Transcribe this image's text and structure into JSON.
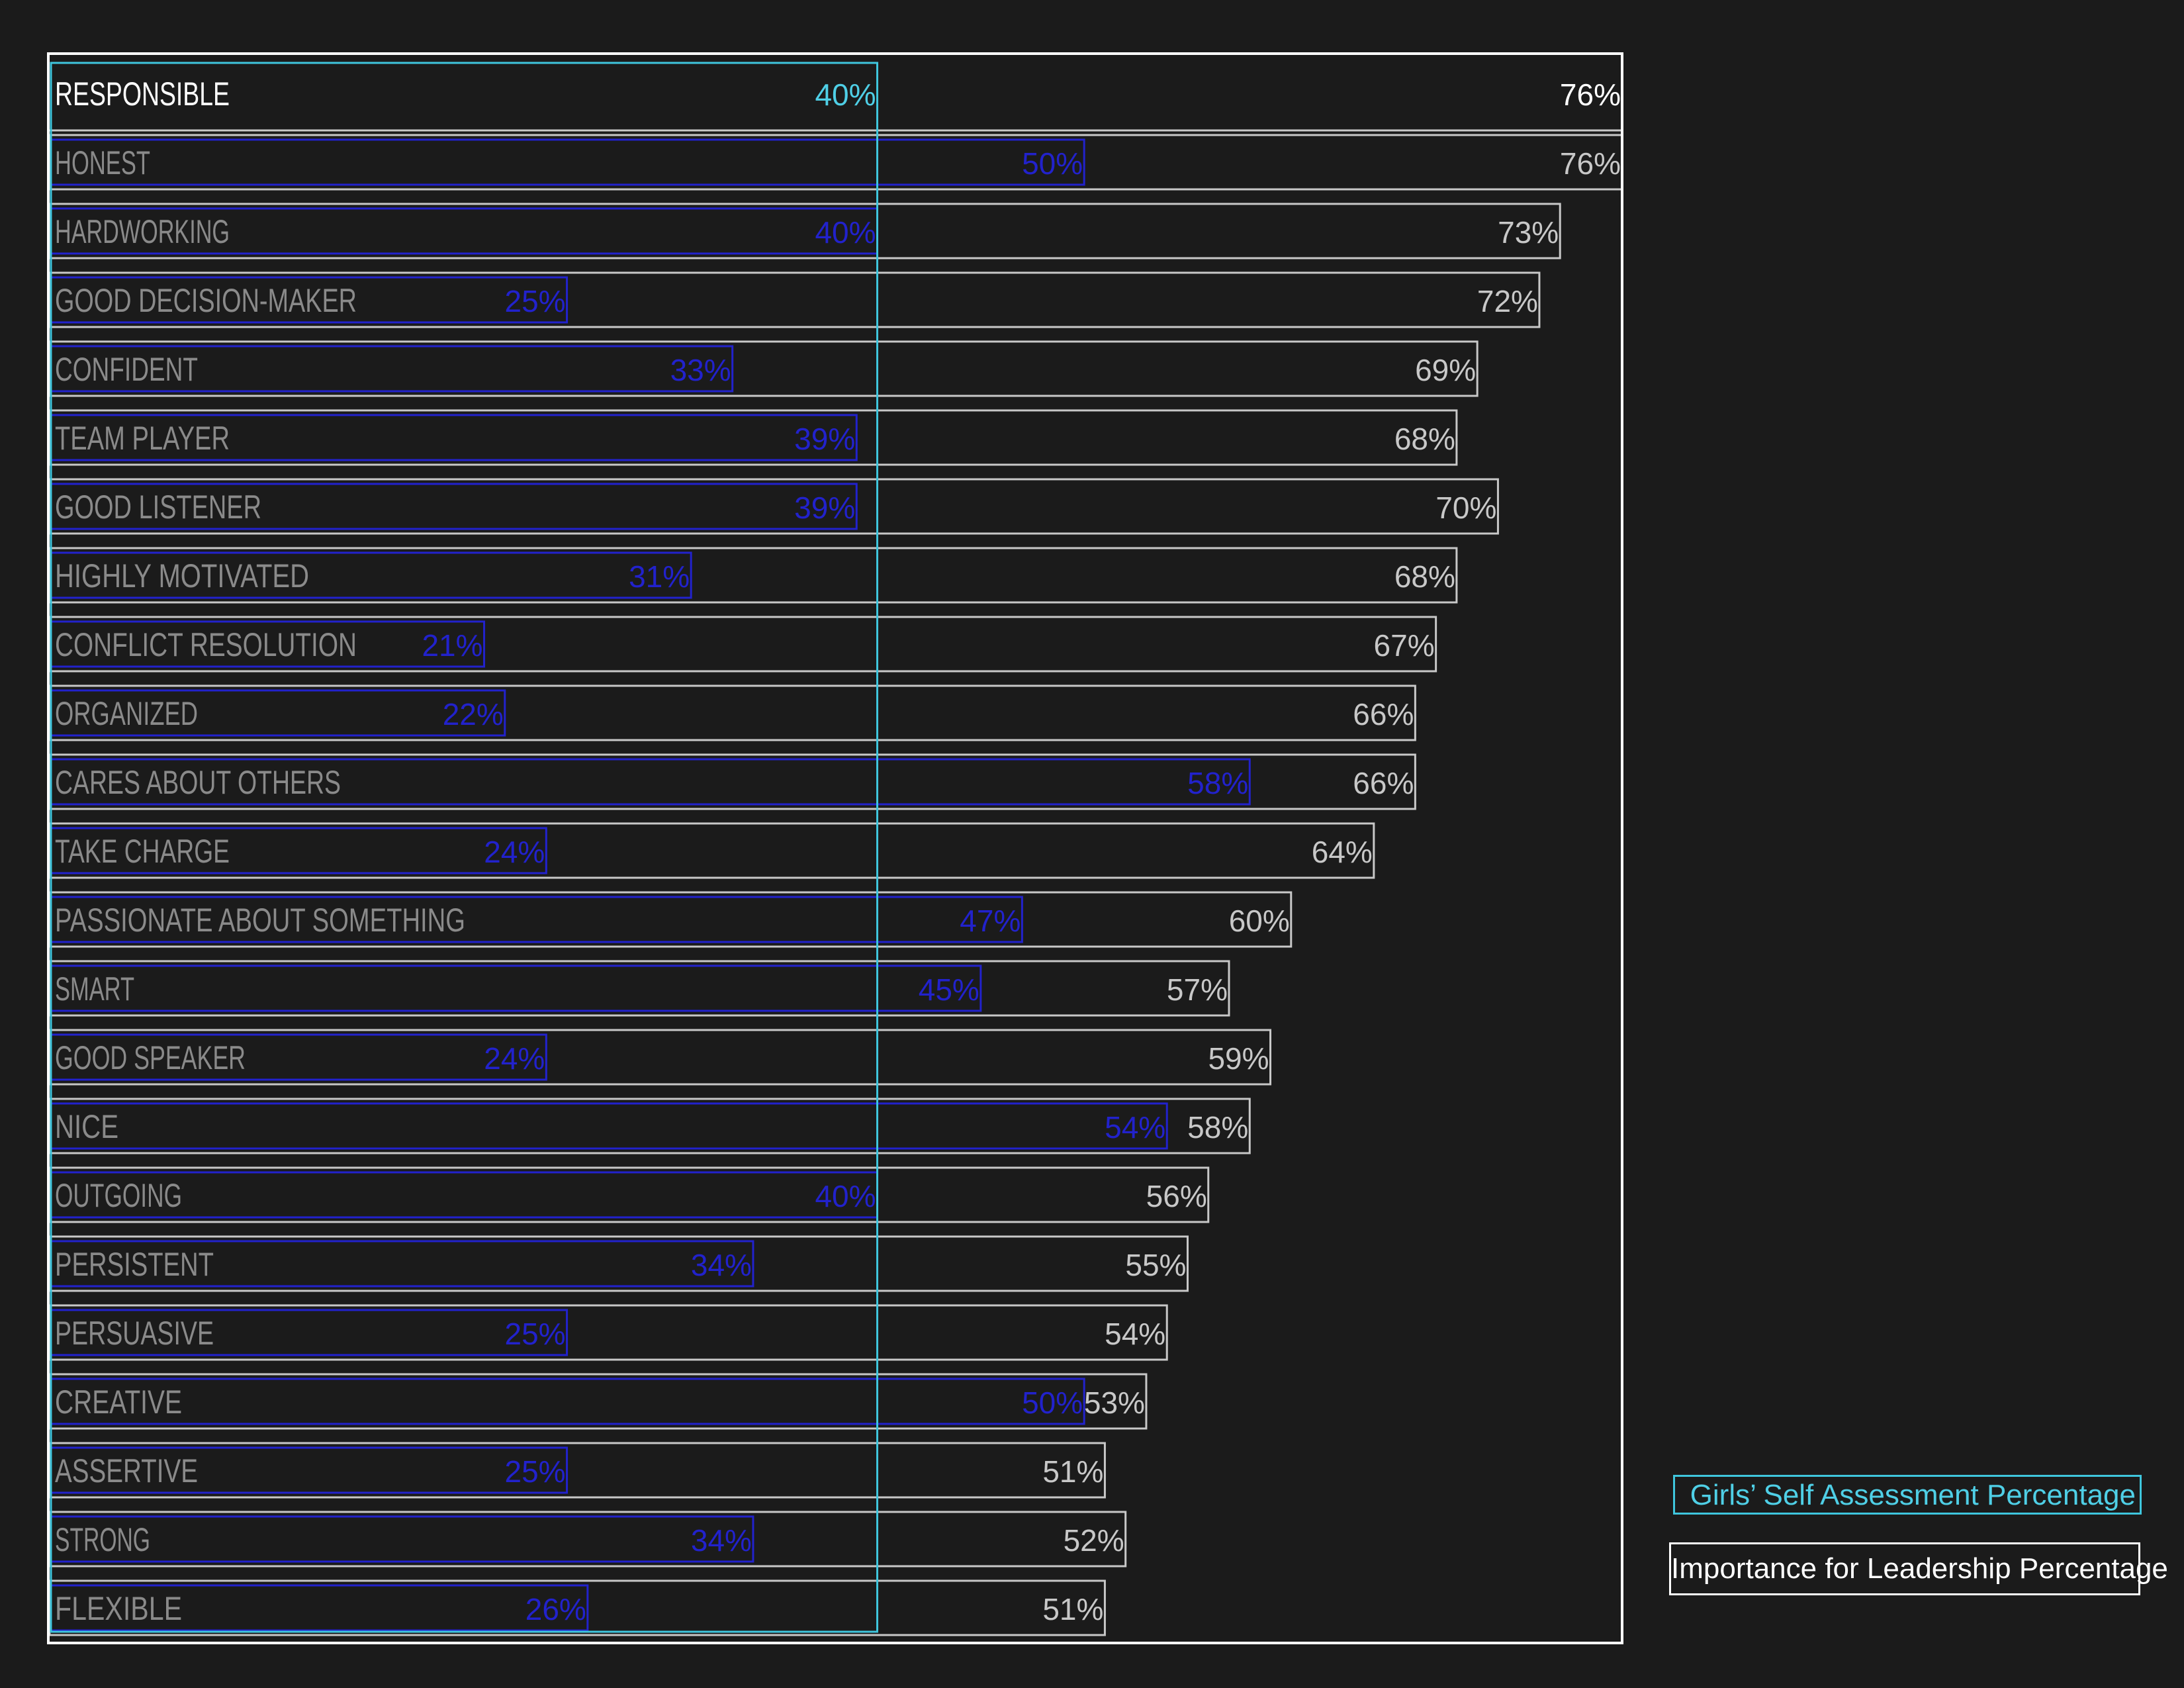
{
  "chart_data": {
    "type": "bar",
    "categories": [
      "RESPONSIBLE",
      "HONEST",
      "HARDWORKING",
      "GOOD DECISION-MAKER",
      "CONFIDENT",
      "TEAM PLAYER",
      "GOOD LISTENER",
      "HIGHLY MOTIVATED",
      "CONFLICT RESOLUTION",
      "ORGANIZED",
      "CARES ABOUT OTHERS",
      "TAKE CHARGE",
      "PASSIONATE ABOUT SOMETHING",
      "SMART",
      "GOOD SPEAKER",
      "NICE",
      "OUTGOING",
      "PERSISTENT",
      "PERSUASIVE",
      "CREATIVE",
      "ASSERTIVE",
      "STRONG",
      "FLEXIBLE"
    ],
    "series": [
      {
        "name": "Importance for Leadership Percentage",
        "values": [
          76,
          76,
          73,
          72,
          69,
          68,
          70,
          68,
          67,
          66,
          66,
          64,
          60,
          57,
          59,
          58,
          56,
          55,
          54,
          53,
          51,
          52,
          51
        ],
        "labels": [
          "76%",
          "76%",
          "73%",
          "72%",
          "69%",
          "68%",
          "70%",
          "68%",
          "67%",
          "66%",
          "66%",
          "64%",
          "60%",
          "57%",
          "59%",
          "58%",
          "56%",
          "55%",
          "54%",
          "53%",
          "51%",
          "52%",
          "51%"
        ],
        "color": "#c8c8c8"
      },
      {
        "name": "Girls’ Self Assessment Percentage",
        "values": [
          40,
          50,
          40,
          25,
          33,
          39,
          39,
          31,
          21,
          22,
          58,
          24,
          47,
          45,
          24,
          54,
          40,
          34,
          25,
          50,
          25,
          34,
          26
        ],
        "labels": [
          "40%",
          "50%",
          "40%",
          "25%",
          "33%",
          "39%",
          "39%",
          "31%",
          "21%",
          "22%",
          "58%",
          "24%",
          "47%",
          "45%",
          "24%",
          "54%",
          "40%",
          "34%",
          "25%",
          "50%",
          "25%",
          "34%",
          "26%"
        ],
        "color": "#2222cc"
      }
    ],
    "highlight": {
      "category": "RESPONSIBLE",
      "importance_color": "#ffffff",
      "self_color": "#4fcfe6"
    },
    "colors": {
      "background": "#1b1b1b",
      "frame": "#ffffff",
      "label_gray": "#8a8a8a",
      "importance_border": "#c8c8c8",
      "self_border": "#2222cc",
      "self_highlight_border": "#3fc6dd"
    },
    "xlim": [
      0,
      76
    ],
    "legend_position": "bottom-right",
    "grid": false
  },
  "legend": {
    "self_label": "Girls’ Self Assessment Percentage",
    "importance_label": "Importance for Leadership Percentage"
  }
}
